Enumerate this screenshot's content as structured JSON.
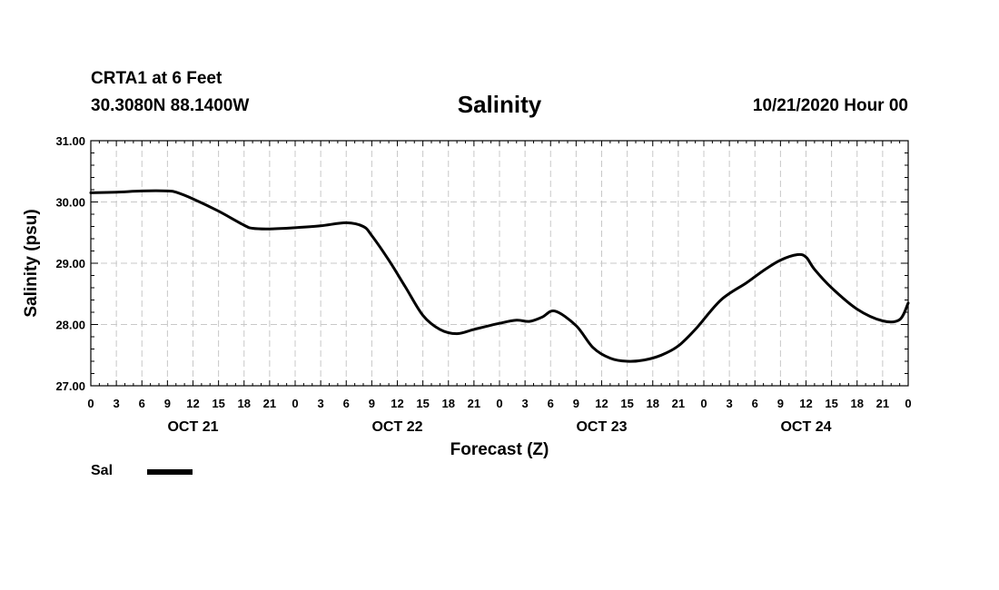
{
  "header": {
    "station": "CRTA1 at 6 Feet",
    "coords": "30.3080N 88.1400W",
    "datetime": "10/21/2020 Hour 00"
  },
  "chart_data": {
    "type": "line",
    "title": "Salinity",
    "xlabel": "Forecast (Z)",
    "ylabel": "Salinity (psu)",
    "x_unit": "forecast hour",
    "xlim": [
      0,
      96
    ],
    "ylim": [
      27.0,
      31.0
    ],
    "y_ticks": [
      "27.00",
      "28.00",
      "29.00",
      "30.00",
      "31.00"
    ],
    "y_tick_values": [
      27,
      28,
      29,
      30,
      31
    ],
    "x_tick_labels": [
      "0",
      "3",
      "6",
      "9",
      "12",
      "15",
      "18",
      "21",
      "0",
      "3",
      "6",
      "9",
      "12",
      "15",
      "18",
      "21",
      "0",
      "3",
      "6",
      "9",
      "12",
      "15",
      "18",
      "21",
      "0",
      "3",
      "6",
      "9",
      "12",
      "15",
      "18",
      "21",
      "0"
    ],
    "day_labels": [
      {
        "label": "OCT 21",
        "center_hour": 12
      },
      {
        "label": "OCT 22",
        "center_hour": 36
      },
      {
        "label": "OCT 23",
        "center_hour": 60
      },
      {
        "label": "OCT 24",
        "center_hour": 84
      }
    ],
    "grid": true,
    "legend_position": "bottom-left",
    "series": [
      {
        "name": "Sal",
        "color": "#000000",
        "x": [
          0,
          3,
          6,
          9,
          10,
          12,
          15,
          18,
          19,
          21,
          24,
          27,
          30,
          32,
          33,
          35,
          37,
          39,
          41,
          43,
          45,
          48,
          50,
          51.5,
          53,
          54.5,
          57,
          59,
          61,
          63,
          65,
          67,
          69,
          71,
          74,
          77,
          79,
          81,
          83,
          84,
          85,
          87,
          90,
          93,
          95,
          96
        ],
        "y": [
          30.15,
          30.16,
          30.18,
          30.18,
          30.16,
          30.05,
          29.85,
          29.62,
          29.57,
          29.56,
          29.58,
          29.61,
          29.66,
          29.6,
          29.45,
          29.05,
          28.6,
          28.15,
          27.92,
          27.85,
          27.92,
          28.02,
          28.07,
          28.05,
          28.12,
          28.22,
          27.98,
          27.62,
          27.45,
          27.4,
          27.42,
          27.5,
          27.65,
          27.92,
          28.4,
          28.68,
          28.88,
          29.05,
          29.14,
          29.1,
          28.9,
          28.6,
          28.25,
          28.06,
          28.08,
          28.35
        ]
      }
    ]
  },
  "legend": {
    "items": [
      {
        "label": "Sal",
        "color": "#000000"
      }
    ]
  }
}
